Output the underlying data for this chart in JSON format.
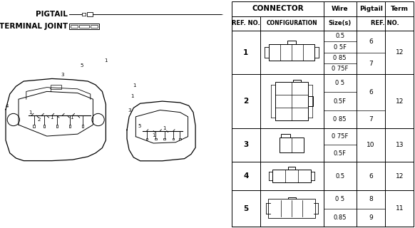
{
  "background_color": "#ffffff",
  "table": {
    "rows": [
      {
        "ref": "1",
        "wire_sizes": [
          "0.5",
          "0 5F",
          "0 85",
          "0 75F"
        ],
        "pigtail": [
          "6",
          "",
          "7",
          ""
        ],
        "pigtail_spans": [
          2,
          2
        ],
        "pigtail_vals": [
          "6",
          "7"
        ],
        "term": "12"
      },
      {
        "ref": "2",
        "wire_sizes": [
          "0 5",
          "0.5F",
          "0 85"
        ],
        "pigtail_vals": [
          "6",
          "7"
        ],
        "pigtail_spans": [
          2,
          1
        ],
        "term": "12"
      },
      {
        "ref": "3",
        "wire_sizes": [
          "0 75F",
          "0.5F"
        ],
        "pigtail_vals": [
          "10"
        ],
        "pigtail_spans": [
          2
        ],
        "term": "13"
      },
      {
        "ref": "4",
        "wire_sizes": [
          "0.5"
        ],
        "pigtail_vals": [
          "6"
        ],
        "pigtail_spans": [
          1
        ],
        "term": "12"
      },
      {
        "ref": "5",
        "wire_sizes": [
          "0 5",
          "0.85"
        ],
        "pigtail_vals": [
          "8",
          "9"
        ],
        "pigtail_spans": [
          1,
          1
        ],
        "term": "11"
      }
    ]
  },
  "font_size": 6.5,
  "header_font_size": 7.0,
  "pigtail_label": "PIGTAIL",
  "terminal_joint_label": "TERMINAL JOINT"
}
